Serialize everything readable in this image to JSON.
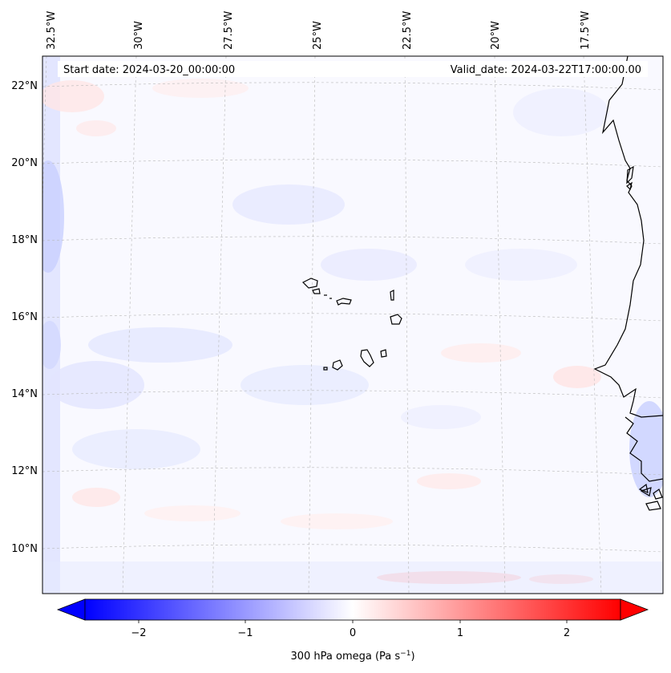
{
  "map": {
    "start_date": "Start date: 2024-03-20_00:00:00",
    "valid_date": "Valid_date: 2024-03-22T17:00:00.00",
    "lon_ticks": [
      "32.5°W",
      "30°W",
      "27.5°W",
      "25°W",
      "22.5°W",
      "20°W",
      "17.5°W"
    ],
    "lat_ticks": [
      "22°N",
      "20°N",
      "18°N",
      "16°N",
      "14°N",
      "12°N",
      "10°N"
    ],
    "gridlines": true,
    "field": "300 hPa omega"
  },
  "colorbar": {
    "label_main": "300 hPa omega (Pa s",
    "label_sup": "−1",
    "label_close": ")",
    "ticks": [
      "−2",
      "−1",
      "0",
      "1",
      "2"
    ],
    "range": [
      -2.5,
      2.5
    ],
    "cmap": "bwr",
    "extend": "both"
  },
  "colors": {
    "negative": "#0000ff",
    "positive": "#ff0000",
    "neutral": "#ffffff",
    "coastline": "#000000",
    "grid": "#b0b0b0"
  }
}
